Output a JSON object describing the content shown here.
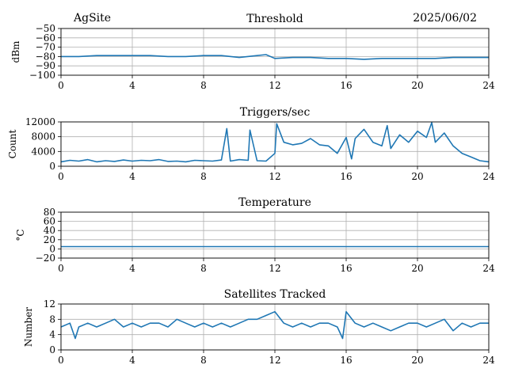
{
  "header": {
    "site": "AgSite",
    "date": "2025/06/02"
  },
  "chart_data": [
    {
      "type": "line",
      "title": "Threshold",
      "xlabel": "",
      "ylabel": "dBm",
      "xlim": [
        0,
        24
      ],
      "ylim": [
        -100,
        -50
      ],
      "x_ticks": [
        "0",
        "4",
        "8",
        "12",
        "16",
        "20",
        "24"
      ],
      "y_ticks": [
        "−50",
        "−60",
        "−70",
        "−80",
        "−90",
        "−100"
      ],
      "y_tick_values": [
        -50,
        -60,
        -70,
        -80,
        -90,
        -100
      ],
      "grid": true,
      "color": "#1f77b4",
      "series": [
        {
          "x": [
            0,
            1,
            2,
            3,
            4,
            5,
            6,
            7,
            8,
            9,
            10,
            11,
            11.5,
            12,
            13,
            14,
            15,
            16,
            17,
            18,
            19,
            20,
            21,
            22,
            23,
            24
          ],
          "y": [
            -80,
            -80,
            -79,
            -79,
            -79,
            -79,
            -80,
            -80,
            -79,
            -79,
            -81,
            -79,
            -78,
            -82,
            -81,
            -81,
            -82,
            -82,
            -83,
            -82,
            -82,
            -82,
            -82,
            -81,
            -81,
            -81
          ]
        }
      ]
    },
    {
      "type": "line",
      "title": "Triggers/sec",
      "xlabel": "",
      "ylabel": "Count",
      "xlim": [
        0,
        24
      ],
      "ylim": [
        0,
        12000
      ],
      "x_ticks": [
        "0",
        "4",
        "8",
        "12",
        "16",
        "20",
        "24"
      ],
      "y_ticks": [
        "0",
        "4000",
        "8000",
        "12000"
      ],
      "y_tick_values": [
        0,
        4000,
        8000,
        12000
      ],
      "grid": true,
      "color": "#1f77b4",
      "series": [
        {
          "x": [
            0,
            0.5,
            1,
            1.5,
            2,
            2.5,
            3,
            3.5,
            4,
            4.5,
            5,
            5.5,
            6,
            6.5,
            7,
            7.5,
            8,
            8.5,
            9,
            9.3,
            9.5,
            10,
            10.5,
            10.6,
            11,
            11.5,
            12,
            12.1,
            12.5,
            13,
            13.5,
            14,
            14.5,
            15,
            15.5,
            16,
            16.3,
            16.5,
            17,
            17.5,
            18,
            18.3,
            18.5,
            19,
            19.5,
            20,
            20.5,
            20.8,
            21,
            21.5,
            22,
            22.5,
            23,
            23.5,
            24
          ],
          "y": [
            1200,
            1600,
            1400,
            1800,
            1200,
            1500,
            1300,
            1700,
            1400,
            1600,
            1500,
            1800,
            1300,
            1400,
            1200,
            1600,
            1500,
            1400,
            1700,
            10200,
            1400,
            1800,
            1600,
            9800,
            1500,
            1400,
            3500,
            11500,
            6500,
            5800,
            6200,
            7500,
            5800,
            5500,
            3500,
            7800,
            2000,
            7500,
            10000,
            6500,
            5500,
            11000,
            4800,
            8500,
            6500,
            9500,
            7800,
            11800,
            6500,
            9000,
            5500,
            3500,
            2500,
            1500,
            1200
          ]
        }
      ]
    },
    {
      "type": "line",
      "title": "Temperature",
      "xlabel": "",
      "ylabel": "°C",
      "xlim": [
        0,
        24
      ],
      "ylim": [
        -20,
        80
      ],
      "x_ticks": [
        "0",
        "4",
        "8",
        "12",
        "16",
        "20",
        "24"
      ],
      "y_ticks": [
        "−20",
        "0",
        "20",
        "40",
        "60",
        "80"
      ],
      "y_tick_values": [
        -20,
        0,
        20,
        40,
        60,
        80
      ],
      "grid": true,
      "color": "#1f77b4",
      "series": [
        {
          "x": [
            0,
            24
          ],
          "y": [
            5,
            5
          ]
        }
      ]
    },
    {
      "type": "line",
      "title": "Satellites Tracked",
      "xlabel": "",
      "ylabel": "Number",
      "xlim": [
        0,
        24
      ],
      "ylim": [
        0,
        12
      ],
      "x_ticks": [
        "0",
        "4",
        "8",
        "12",
        "16",
        "20",
        "24"
      ],
      "y_ticks": [
        "0",
        "4",
        "8",
        "12"
      ],
      "y_tick_values": [
        0,
        4,
        8,
        12
      ],
      "grid": true,
      "color": "#1f77b4",
      "series": [
        {
          "x": [
            0,
            0.5,
            0.8,
            1,
            1.5,
            2,
            2.5,
            3,
            3.5,
            4,
            4.5,
            5,
            5.5,
            6,
            6.5,
            7,
            7.5,
            8,
            8.5,
            9,
            9.5,
            10,
            10.5,
            11,
            11.5,
            12,
            12.5,
            13,
            13.5,
            14,
            14.5,
            15,
            15.5,
            15.8,
            16,
            16.5,
            17,
            17.5,
            18,
            18.5,
            19,
            19.5,
            20,
            20.5,
            21,
            21.5,
            22,
            22.5,
            23,
            23.5,
            24
          ],
          "y": [
            6,
            7,
            3,
            6,
            7,
            6,
            7,
            8,
            6,
            7,
            6,
            7,
            7,
            6,
            8,
            7,
            6,
            7,
            6,
            7,
            6,
            7,
            8,
            8,
            9,
            10,
            7,
            6,
            7,
            6,
            7,
            7,
            6,
            3,
            10,
            7,
            6,
            7,
            6,
            5,
            6,
            7,
            7,
            6,
            7,
            8,
            5,
            7,
            6,
            7,
            7
          ]
        }
      ]
    }
  ]
}
